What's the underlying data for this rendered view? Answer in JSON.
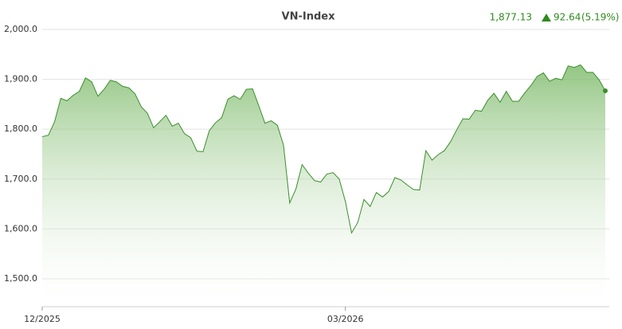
{
  "chart_data": {
    "type": "area",
    "title": "VN-Index",
    "last_value": "1,877.13",
    "change": "92.64",
    "change_pct": "(5.19%)",
    "color": "#3a8f2a",
    "grid": true,
    "ylim": [
      1444,
      2000
    ],
    "yticks": [
      {
        "value": 1500,
        "label": "1,500.0"
      },
      {
        "value": 1600,
        "label": "1,600.0"
      },
      {
        "value": 1700,
        "label": "1,700.0"
      },
      {
        "value": 1800,
        "label": "1,800.0"
      },
      {
        "value": 1900,
        "label": "1,900.0"
      },
      {
        "value": 2000,
        "label": "2,000.0"
      }
    ],
    "categories": [
      "12/2025",
      null,
      null,
      null,
      null,
      null,
      null,
      null,
      null,
      null,
      null,
      null,
      null,
      null,
      null,
      null,
      null,
      null,
      null,
      null,
      null,
      null,
      null,
      null,
      null,
      null,
      null,
      null,
      null,
      null,
      null,
      null,
      null,
      null,
      null,
      null,
      null,
      null,
      null,
      null,
      null,
      null,
      null,
      null,
      null,
      null,
      null,
      null,
      null,
      "03/2026",
      null,
      null,
      null,
      null,
      null,
      null,
      null,
      null,
      null,
      null,
      null,
      null,
      null,
      null,
      null,
      null,
      null,
      null,
      null,
      null,
      null,
      null,
      null,
      null,
      null,
      null,
      null,
      null,
      null,
      null,
      null,
      null,
      null,
      null,
      null,
      null,
      null,
      null,
      null,
      null,
      null,
      null
    ],
    "values": [
      1785,
      1788,
      1815,
      1862,
      1857,
      1868,
      1876,
      1903,
      1895,
      1866,
      1880,
      1898,
      1895,
      1886,
      1883,
      1871,
      1845,
      1832,
      1803,
      1815,
      1828,
      1806,
      1812,
      1791,
      1783,
      1756,
      1755,
      1797,
      1813,
      1823,
      1860,
      1867,
      1860,
      1880,
      1881,
      1847,
      1812,
      1817,
      1808,
      1768,
      1652,
      1680,
      1729,
      1712,
      1697,
      1694,
      1710,
      1713,
      1700,
      1655,
      1592,
      1613,
      1659,
      1645,
      1673,
      1664,
      1675,
      1703,
      1698,
      1688,
      1679,
      1678,
      1757,
      1738,
      1749,
      1757,
      1775,
      1799,
      1821,
      1820,
      1838,
      1836,
      1858,
      1872,
      1854,
      1876,
      1856,
      1856,
      1873,
      1888,
      1906,
      1913,
      1896,
      1902,
      1899,
      1927,
      1924,
      1929,
      1914,
      1914,
      1899,
      1877
    ]
  }
}
